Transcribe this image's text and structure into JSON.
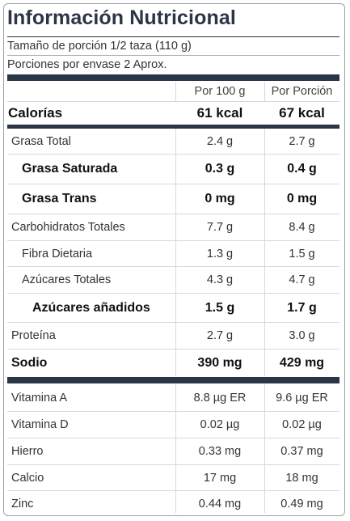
{
  "title": "Información Nutricional",
  "serving_size": "Tamaño de porción 1/2 taza (110 g)",
  "servings_per_container": "Porciones por envase 2 Aprox.",
  "columns": {
    "per100": "Por 100 g",
    "perServing": "Por Porción"
  },
  "calories": {
    "label": "Calorías",
    "per100": "61 kcal",
    "perServing": "67 kcal"
  },
  "nutrients": [
    {
      "label": "Grasa Total",
      "per100": "2.4 g",
      "perServing": "2.7 g"
    },
    {
      "label": "Grasa Saturada",
      "per100": "0.3 g",
      "perServing": "0.4 g"
    },
    {
      "label": "Grasa Trans",
      "per100": "0 mg",
      "perServing": "0 mg"
    },
    {
      "label": "Carbohidratos Totales",
      "per100": "7.7 g",
      "perServing": "8.4 g"
    },
    {
      "label": "Fibra Dietaria",
      "per100": "1.3 g",
      "perServing": "1.5 g"
    },
    {
      "label": "Azúcares Totales",
      "per100": "4.3 g",
      "perServing": "4.7 g"
    },
    {
      "label": "Azúcares añadidos",
      "per100": "1.5 g",
      "perServing": "1.7 g"
    },
    {
      "label": "Proteína",
      "per100": "2.7 g",
      "perServing": "3.0 g"
    },
    {
      "label": "Sodio",
      "per100": "390 mg",
      "perServing": "429 mg"
    }
  ],
  "micronutrients": [
    {
      "label": "Vitamina A",
      "per100": "8.8 µg ER",
      "perServing": "9.6 µg ER"
    },
    {
      "label": "Vitamina D",
      "per100": "0.02 µg",
      "perServing": "0.02 µg"
    },
    {
      "label": "Hierro",
      "per100": "0.33 mg",
      "perServing": "0.37 mg"
    },
    {
      "label": "Calcio",
      "per100": "17 mg",
      "perServing": "18 mg"
    },
    {
      "label": "Zinc",
      "per100": "0.44 mg",
      "perServing": "0.49 mg"
    }
  ]
}
